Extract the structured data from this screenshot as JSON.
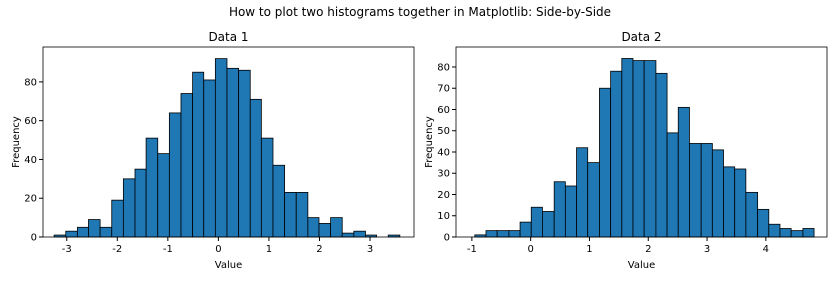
{
  "title": "How to plot two histograms together in Matplotlib: Side-by-Side",
  "chart_data": [
    {
      "type": "histogram",
      "title": "Data 1",
      "xlabel": "Value",
      "ylabel": "Frequency",
      "color": "#1f77b4",
      "edgecolor": "#000000",
      "bins": [
        -3.25,
        -3.02,
        -2.79,
        -2.57,
        -2.34,
        -2.11,
        -1.88,
        -1.65,
        -1.43,
        -1.2,
        -0.97,
        -0.74,
        -0.51,
        -0.29,
        -0.06,
        0.17,
        0.4,
        0.63,
        0.85,
        1.08,
        1.31,
        1.54,
        1.77,
        1.99,
        2.22,
        2.45,
        2.68,
        2.91,
        3.13,
        3.36,
        3.59
      ],
      "values": [
        1,
        3,
        5,
        9,
        5,
        19,
        30,
        35,
        51,
        43,
        64,
        74,
        85,
        81,
        92,
        87,
        86,
        71,
        51,
        37,
        23,
        23,
        10,
        7,
        10,
        2,
        3,
        1,
        0,
        1
      ],
      "xlim": [
        -3.47,
        3.87
      ],
      "xticks": [
        -3,
        -2,
        -1,
        0,
        1,
        2,
        3
      ],
      "ylim": [
        0,
        98
      ],
      "yticks": [
        0,
        20,
        40,
        60,
        80
      ]
    },
    {
      "type": "histogram",
      "title": "Data 2",
      "xlabel": "Value",
      "ylabel": "Frequency",
      "color": "#1f77b4",
      "edgecolor": "#000000",
      "bins": [
        -0.95,
        -0.76,
        -0.57,
        -0.37,
        -0.18,
        0.01,
        0.2,
        0.4,
        0.59,
        0.78,
        0.97,
        1.17,
        1.36,
        1.55,
        1.74,
        1.93,
        2.13,
        2.32,
        2.51,
        2.7,
        2.9,
        3.09,
        3.28,
        3.47,
        3.66,
        3.86,
        4.05,
        4.24,
        4.43,
        4.63,
        4.82
      ],
      "values": [
        1,
        3,
        3,
        3,
        7,
        14,
        12,
        26,
        24,
        42,
        35,
        70,
        78,
        84,
        83,
        83,
        77,
        49,
        61,
        44,
        44,
        41,
        33,
        32,
        21,
        13,
        6,
        4,
        3,
        4
      ],
      "xlim": [
        -1.27,
        5.04
      ],
      "xticks": [
        -1,
        0,
        1,
        2,
        3,
        4
      ],
      "ylim": [
        0,
        89.4
      ],
      "yticks": [
        0,
        10,
        20,
        30,
        40,
        50,
        60,
        70,
        80
      ]
    }
  ]
}
